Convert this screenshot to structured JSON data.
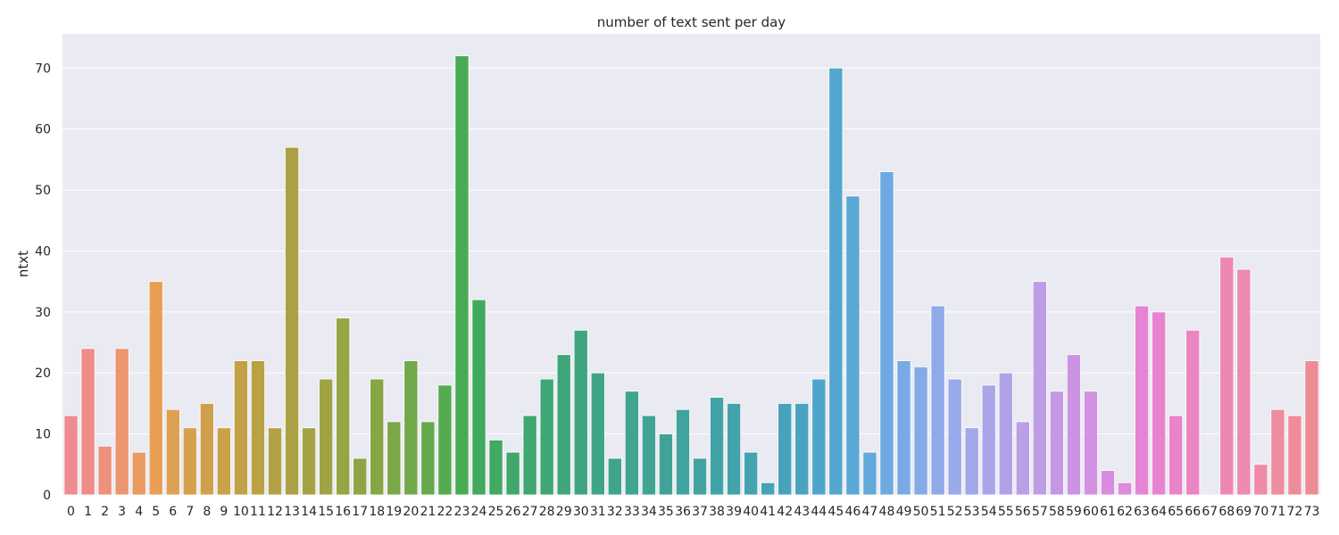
{
  "chart_data": {
    "type": "bar",
    "title": "number of text sent per day",
    "xlabel": "",
    "ylabel": "ntxt",
    "ylim": [
      0,
      75.6
    ],
    "yticks": [
      0,
      10,
      20,
      30,
      40,
      50,
      60,
      70
    ],
    "grid": true,
    "categories": [
      "0",
      "1",
      "2",
      "3",
      "4",
      "5",
      "6",
      "7",
      "8",
      "9",
      "10",
      "11",
      "12",
      "13",
      "14",
      "15",
      "16",
      "17",
      "18",
      "19",
      "20",
      "21",
      "22",
      "23",
      "24",
      "25",
      "26",
      "27",
      "28",
      "29",
      "30",
      "31",
      "32",
      "33",
      "34",
      "35",
      "36",
      "37",
      "38",
      "39",
      "40",
      "41",
      "42",
      "43",
      "44",
      "45",
      "46",
      "47",
      "48",
      "49",
      "50",
      "51",
      "52",
      "53",
      "54",
      "55",
      "56",
      "57",
      "58",
      "59",
      "60",
      "61",
      "62",
      "63",
      "64",
      "65",
      "66",
      "67",
      "68",
      "69",
      "70",
      "71",
      "72",
      "73"
    ],
    "values": [
      13,
      24,
      8,
      24,
      7,
      35,
      14,
      11,
      15,
      11,
      22,
      22,
      11,
      57,
      11,
      19,
      29,
      6,
      19,
      12,
      22,
      12,
      18,
      72,
      32,
      9,
      7,
      13,
      19,
      23,
      27,
      20,
      6,
      17,
      13,
      10,
      14,
      6,
      16,
      15,
      7,
      2,
      15,
      15,
      19,
      70,
      49,
      7,
      53,
      22,
      21,
      31,
      19,
      11,
      18,
      20,
      12,
      35,
      17,
      23,
      17,
      4,
      2,
      31,
      30,
      13,
      27,
      0,
      39,
      37,
      5,
      14,
      13,
      22
    ],
    "colors": [
      "#ee8b91",
      "#ee8d87",
      "#ee917c",
      "#ec9670",
      "#e99a62",
      "#e89f54",
      "#dea052",
      "#d6a04e",
      "#cfa04b",
      "#c8a148",
      "#c1a146",
      "#b9a245",
      "#b3a145",
      "#aaa144",
      "#a5a245",
      "#9fa344",
      "#97a444",
      "#8fa545",
      "#86a646",
      "#7ca848",
      "#71a94a",
      "#64aa4d",
      "#55ab50",
      "#48ab54",
      "#42aa5c",
      "#40a963",
      "#3fa86a",
      "#3fa770",
      "#3fa676",
      "#3fa67c",
      "#3fa581",
      "#3fa587",
      "#40a48b",
      "#40a490",
      "#41a394",
      "#41a398",
      "#41a39d",
      "#42a3a1",
      "#42a3a6",
      "#43a3ab",
      "#44a3b0",
      "#45a3b6",
      "#47a3bc",
      "#49a4c2",
      "#4da5c9",
      "#53a6cf",
      "#5aa8d6",
      "#63a9dc",
      "#6caae1",
      "#78abe5",
      "#84abe7",
      "#8eaae8",
      "#99a9e9",
      "#a2a7e9",
      "#aaa5e9",
      "#b1a2e8",
      "#b89fe7",
      "#bf9ce6",
      "#c598e5",
      "#cb94e3",
      "#d291e1",
      "#d98cde",
      "#e088da",
      "#e584d5",
      "#e883cf",
      "#ea84c8",
      "#eb85c2",
      "#ec87bc",
      "#ed88b5",
      "#ed8aae",
      "#ee8ba7",
      "#ee8ca0",
      "#ee8c99",
      "#ee8c94"
    ]
  }
}
